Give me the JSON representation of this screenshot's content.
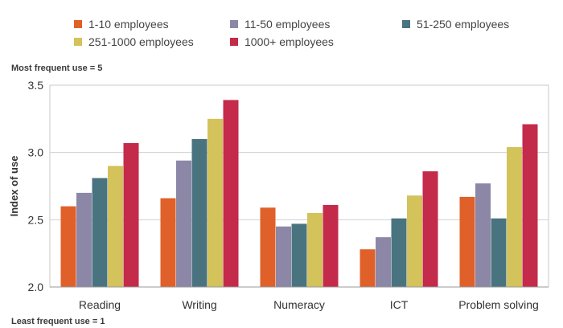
{
  "notes": {
    "top": "Most frequent use = 5",
    "bottom": "Least frequent use = 1"
  },
  "chart_data": {
    "type": "bar",
    "title": "",
    "xlabel": "",
    "ylabel": "Index of use",
    "ylim": [
      2.0,
      3.5
    ],
    "yticks": [
      "2.0",
      "2.5",
      "3.0",
      "3.5"
    ],
    "grid": true,
    "legend_position": "top",
    "categories": [
      "Reading",
      "Writing",
      "Numeracy",
      "ICT",
      "Problem solving"
    ],
    "series": [
      {
        "name": "1-10 employees",
        "color": "#e0602a",
        "values": [
          2.6,
          2.66,
          2.59,
          2.28,
          2.67
        ]
      },
      {
        "name": "11-50 employees",
        "color": "#8c87a6",
        "values": [
          2.7,
          2.94,
          2.45,
          2.37,
          2.77
        ]
      },
      {
        "name": "51-250 employees",
        "color": "#4a7380",
        "values": [
          2.81,
          3.1,
          2.47,
          2.51,
          2.51
        ]
      },
      {
        "name": "251-1000 employees",
        "color": "#d4c25a",
        "values": [
          2.9,
          3.25,
          2.55,
          2.68,
          3.04
        ]
      },
      {
        "name": "1000+ employees",
        "color": "#c42a4a",
        "values": [
          3.07,
          3.39,
          2.61,
          2.86,
          3.21
        ]
      }
    ]
  }
}
